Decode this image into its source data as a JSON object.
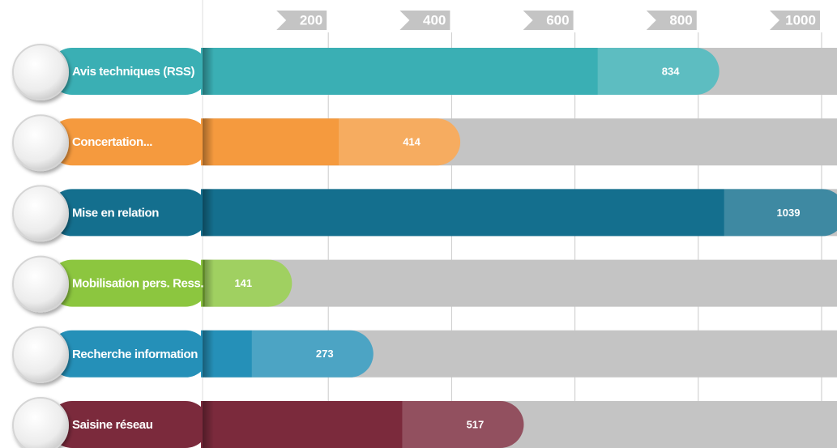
{
  "chart_data": {
    "type": "bar",
    "categories": [
      "Avis techniques (RSS)",
      "Concertation...",
      "Mise en relation",
      "Mobilisation pers. Ress.",
      "Recherche information",
      "Saisine réseau"
    ],
    "values": [
      834,
      414,
      1039,
      141,
      273,
      517
    ],
    "colors": [
      "#3aafb4",
      "#f59a3e",
      "#146f8e",
      "#8cc63f",
      "#2590b8",
      "#7b2a3c"
    ],
    "xlim": [
      0,
      1025
    ],
    "xticks": [
      200,
      400,
      600,
      800,
      1000
    ],
    "grid": true
  }
}
